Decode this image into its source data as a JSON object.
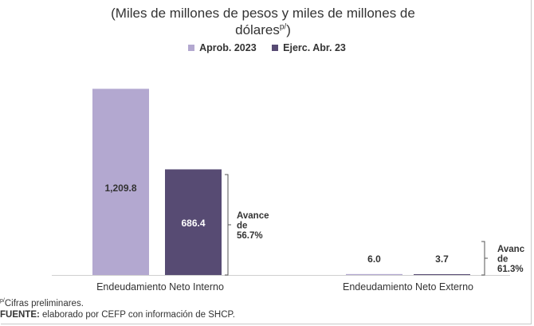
{
  "chart_data": {
    "type": "bar",
    "subtitle_line1": "(Miles de millones de pesos y miles de millones de",
    "subtitle_line2": "dólares",
    "subtitle_sup": "p/",
    "subtitle_end": ")",
    "categories": [
      "Endeudamiento Neto Interno",
      "Endeudamiento Neto Externo"
    ],
    "series": [
      {
        "name": "Aprob. 2023",
        "values": [
          1209.8,
          6.0
        ],
        "labels": [
          "1,209.8",
          "6.0"
        ],
        "color": "#b3a8d0"
      },
      {
        "name": "Ejerc. Abr. 23",
        "values": [
          686.4,
          3.7
        ],
        "labels": [
          "686.4",
          "3.7"
        ],
        "color": "#574b73"
      }
    ],
    "annotations": [
      {
        "category": 0,
        "lines": [
          "Avance",
          "de",
          "56.7%"
        ]
      },
      {
        "category": 1,
        "lines": [
          "Avanc",
          "de",
          "61.3%"
        ]
      }
    ],
    "ylim": [
      0,
      1300
    ],
    "grid": false,
    "legend_position": "top-center"
  },
  "notes": {
    "footnote_sup": "p/",
    "footnote": "Cifras preliminares.",
    "source_label": "FUENTE:",
    "source_text": " elaborado por CEFP con información de SHCP."
  }
}
